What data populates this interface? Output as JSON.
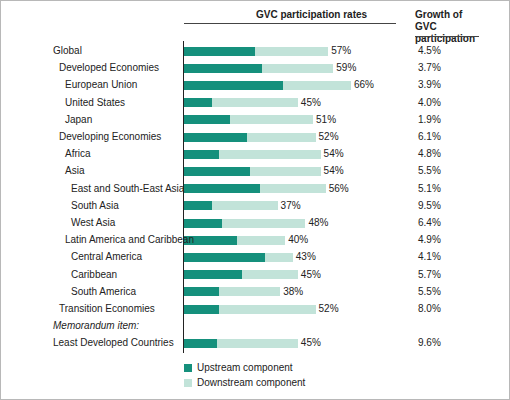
{
  "chart_data": {
    "type": "bar",
    "orientation": "horizontal",
    "stacked": true,
    "data_labels": true,
    "tick_labels": false,
    "grid": false,
    "title": "GVC participation rates",
    "categories": [
      "Global",
      "Developed Economies",
      "European Union",
      "United States",
      "Japan",
      "Developing Economies",
      "Africa",
      "Asia",
      "East and South-East Asia",
      "South Asia",
      "West Asia",
      "Latin America and Caribbean",
      "Central America",
      "Caribbean",
      "South America",
      "Transition Economies",
      "Least Developed Countries"
    ],
    "series": [
      {
        "name": "Upstream component",
        "color": "#15907c",
        "values": [
          28,
          31,
          39,
          11,
          18,
          25,
          14,
          26,
          30,
          11,
          15,
          21,
          32,
          23,
          14,
          14,
          13
        ]
      },
      {
        "name": "Downstream component",
        "color": "#c2e3d9",
        "values": [
          29,
          28,
          27,
          34,
          33,
          27,
          40,
          28,
          26,
          26,
          33,
          19,
          11,
          22,
          24,
          38,
          32
        ]
      }
    ],
    "totals": [
      57,
      59,
      66,
      45,
      51,
      52,
      54,
      54,
      56,
      37,
      48,
      40,
      43,
      45,
      38,
      52,
      45
    ],
    "total_labels": [
      "57%",
      "59%",
      "66%",
      "45%",
      "51%",
      "52%",
      "54%",
      "54%",
      "56%",
      "37%",
      "48%",
      "40%",
      "43%",
      "45%",
      "38%",
      "52%",
      "45%"
    ],
    "growth": {
      "title": "Growth of GVC participation",
      "values": [
        4.5,
        3.7,
        3.9,
        4.0,
        1.9,
        6.1,
        4.8,
        5.5,
        5.1,
        9.5,
        6.4,
        4.9,
        4.1,
        5.7,
        5.5,
        8.0,
        9.6
      ],
      "value_labels": [
        "4.5%",
        "3.7%",
        "3.9%",
        "4.0%",
        "1.9%",
        "6.1%",
        "4.8%",
        "5.5%",
        "5.1%",
        "9.5%",
        "6.4%",
        "4.9%",
        "4.1%",
        "5.7%",
        "5.5%",
        "8.0%",
        "9.6%"
      ]
    },
    "annotations": [
      "Memorandum item:"
    ],
    "xlim": [
      0,
      70
    ],
    "legend": "bottom"
  }
}
